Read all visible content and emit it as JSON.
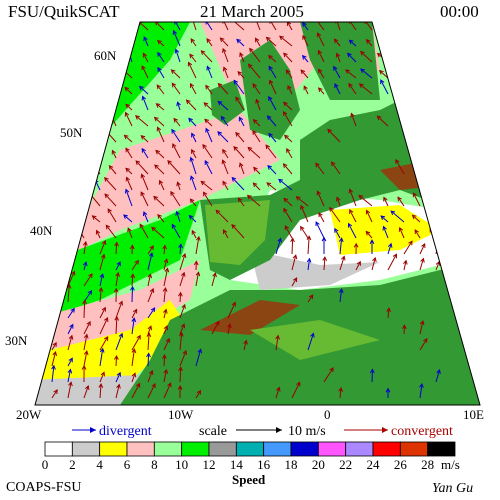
{
  "header": {
    "source": "FSU/QuikSCAT",
    "date": "21 March 2005",
    "time": "00:00"
  },
  "map": {
    "lat_labels": [
      "60N",
      "50N",
      "40N",
      "30N"
    ],
    "lon_labels": [
      "20W",
      "10W",
      "0",
      "10E"
    ]
  },
  "arrow_legend": {
    "divergent": "divergent",
    "scale": "scale",
    "scale_value": "10 m/s",
    "convergent": "convergent"
  },
  "colorbar": {
    "ticks": [
      "0",
      "2",
      "4",
      "6",
      "8",
      "10",
      "12",
      "14",
      "16",
      "18",
      "20",
      "22",
      "24",
      "26",
      "28"
    ],
    "colors": [
      "#ffffff",
      "#cccccc",
      "#ffff00",
      "#ffc0c0",
      "#99ff99",
      "#00ee00",
      "#999999",
      "#00b0b0",
      "#4499ff",
      "#0000cc",
      "#ff55ff",
      "#aa88ff",
      "#ff0000",
      "#dd3300",
      "#000000"
    ],
    "unit": "m/s",
    "label": "Speed"
  },
  "footer": {
    "org": "COAPS-FSU",
    "author": "Yan Gu"
  }
}
